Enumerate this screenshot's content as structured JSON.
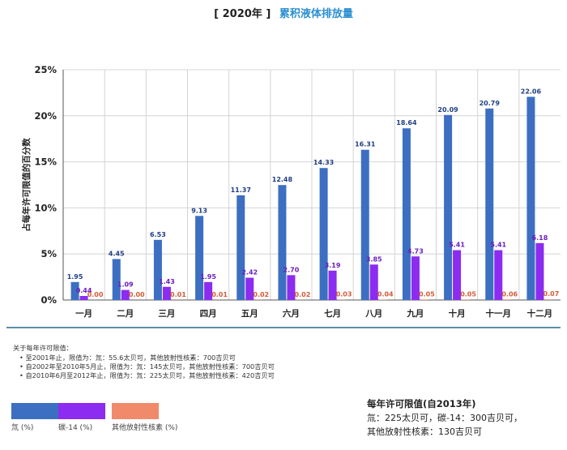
{
  "header": {
    "year_label": "[ 2020年 ]",
    "title": "累积液体排放量"
  },
  "chart_data": {
    "type": "bar",
    "ylabel": "占每年许可限值的百分数",
    "ylim": [
      0,
      25
    ],
    "yticks": [
      0,
      5,
      10,
      15,
      20,
      25
    ],
    "ytick_labels": [
      "0%",
      "5%",
      "10%",
      "15%",
      "20%",
      "25%"
    ],
    "categories": [
      "一月",
      "二月",
      "三月",
      "四月",
      "五月",
      "六月",
      "七月",
      "八月",
      "九月",
      "十月",
      "十一月",
      "十二月"
    ],
    "series": [
      {
        "name": "氚 (%)",
        "color": "#3c6fc2",
        "labelColor": "#1f3f80",
        "values": [
          1.95,
          4.45,
          6.53,
          9.13,
          11.37,
          12.48,
          14.33,
          16.31,
          18.64,
          20.09,
          20.79,
          22.06
        ],
        "labels": [
          "1.95",
          "4.45",
          "6.53",
          "9.13",
          "11.37",
          "12.48",
          "14.33",
          "16.31",
          "18.64",
          "20.09",
          "20.79",
          "22.06"
        ]
      },
      {
        "name": "碳-14 (%)",
        "color": "#8b2cf0",
        "labelColor": "#6a1fbf",
        "values": [
          0.44,
          1.09,
          1.43,
          1.95,
          2.42,
          2.7,
          3.19,
          3.85,
          4.73,
          5.41,
          5.41,
          6.18
        ],
        "labels": [
          "0.44",
          "1.09",
          "1.43",
          "1.95",
          "2.42",
          "2.70",
          "3.19",
          "3.85",
          "4.73",
          "5.41",
          "5.41",
          "6.18"
        ]
      },
      {
        "name": "其他放射性核素 (%)",
        "color": "#f08a6a",
        "labelColor": "#d65a36",
        "values": [
          0.0,
          0.0,
          0.01,
          0.01,
          0.02,
          0.02,
          0.03,
          0.04,
          0.05,
          0.05,
          0.06,
          0.07
        ],
        "labels": [
          "0.00",
          "0.00",
          "0.01",
          "0.01",
          "0.02",
          "0.02",
          "0.03",
          "0.04",
          "0.05",
          "0.05",
          "0.06",
          "0.07"
        ]
      }
    ],
    "grid": true
  },
  "notes": {
    "heading": "关于每年许可限值：",
    "items": [
      "至2001年止，限值为：氚：55.6太贝可，其他放射性核素：700吉贝可",
      "自2002年至2010年5月止，限值为：氚：145太贝可，其他放射性核素：700吉贝可",
      "自2010年6月至2012年止，限值为：氚：225太贝可，其他放射性核素：420吉贝可"
    ]
  },
  "legend": [
    {
      "label": "氚 (%)",
      "color": "#3c6fc2"
    },
    {
      "label": "碳-14 (%)",
      "color": "#8b2cf0"
    },
    {
      "label": "其他放射性核素 (%)",
      "color": "#f08a6a"
    }
  ],
  "limits": {
    "title": "每年许可限值(自2013年)",
    "line1": "氚：225太贝可，碳-14：300吉贝可，",
    "line2": "其他放射性核素：130吉贝可"
  }
}
